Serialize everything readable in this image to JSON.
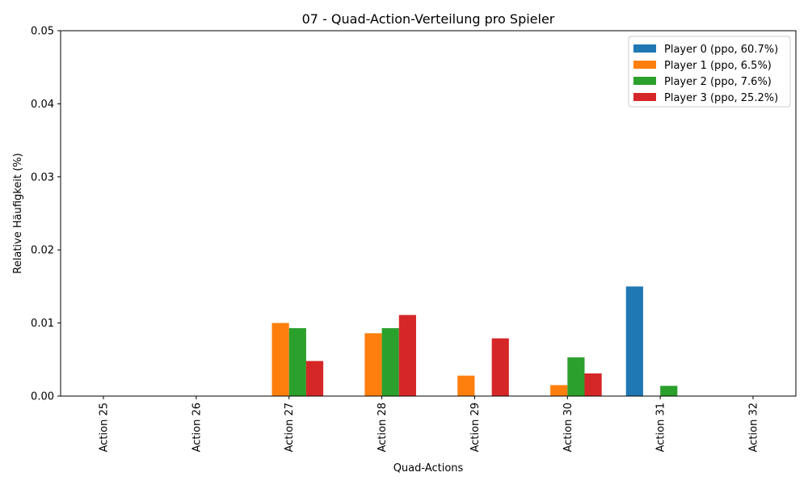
{
  "chart_data": {
    "type": "bar",
    "title": "07 - Quad-Action-Verteilung pro Spieler",
    "xlabel": "Quad-Actions",
    "ylabel": "Relative Häufigkeit (%)",
    "ylim": [
      0,
      0.05
    ],
    "yticks": [
      "0.00",
      "0.01",
      "0.02",
      "0.03",
      "0.04",
      "0.05"
    ],
    "categories": [
      "Action 25",
      "Action 26",
      "Action 27",
      "Action 28",
      "Action 29",
      "Action 30",
      "Action 31",
      "Action 32"
    ],
    "legend_position": "top-right",
    "grid": false,
    "series": [
      {
        "name": "Player 0 (ppo, 60.7%)",
        "color": "#1f77b4",
        "values": [
          0,
          0,
          0,
          0,
          0,
          0,
          0.015,
          0
        ]
      },
      {
        "name": "Player 1 (ppo, 6.5%)",
        "color": "#ff7f0e",
        "values": [
          0,
          0,
          0.01,
          0.0086,
          0.0028,
          0.0015,
          0,
          0
        ]
      },
      {
        "name": "Player 2 (ppo, 7.6%)",
        "color": "#2ca02c",
        "values": [
          0,
          0,
          0.0093,
          0.0093,
          0,
          0.0053,
          0.0014,
          0
        ]
      },
      {
        "name": "Player 3 (ppo, 25.2%)",
        "color": "#d62728",
        "values": [
          0,
          0,
          0.0048,
          0.0111,
          0.0079,
          0.0031,
          0,
          0
        ]
      }
    ]
  }
}
